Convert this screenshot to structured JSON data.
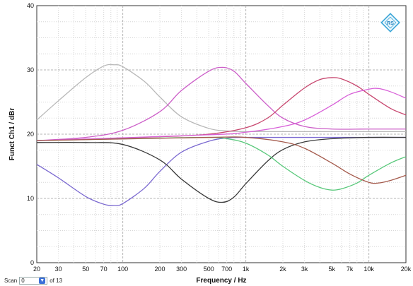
{
  "chart_data": {
    "type": "line",
    "xscale": "log",
    "xlim": [
      20,
      20000
    ],
    "ylim": [
      0,
      40
    ],
    "xlabel": "Frequency / Hz",
    "ylabel": "Funct Ch1 / dBr",
    "xticks": [
      20,
      30,
      50,
      70,
      100,
      200,
      300,
      500,
      700,
      1000,
      2000,
      3000,
      5000,
      7000,
      10000,
      20000
    ],
    "xtick_labels": [
      "20",
      "30",
      "50",
      "70",
      "100",
      "200",
      "300",
      "500",
      "700",
      "1k",
      "2k",
      "3k",
      "5k",
      "7k",
      "10k",
      "20k"
    ],
    "yticks": [
      0,
      10,
      20,
      30,
      40
    ],
    "ytick_labels": [
      "0",
      "10",
      "20",
      "30",
      "40"
    ],
    "grid": true,
    "series": [
      {
        "color": "#b8b8b8",
        "x": [
          20,
          30,
          50,
          70,
          85,
          100,
          150,
          200,
          300,
          500,
          700,
          1000,
          2000,
          5000,
          20000
        ],
        "y": [
          22.2,
          25.2,
          28.8,
          30.6,
          30.8,
          30.5,
          28.2,
          25.8,
          22.7,
          20.9,
          20.5,
          20.4,
          20.4,
          20.4,
          20.4
        ]
      },
      {
        "color": "#7a68d0",
        "x": [
          20,
          30,
          50,
          70,
          85,
          100,
          150,
          200,
          300,
          500,
          700,
          1000,
          2000,
          5000,
          20000
        ],
        "y": [
          15.3,
          13.2,
          10.3,
          9.1,
          8.9,
          9.2,
          11.6,
          14.2,
          17.2,
          18.9,
          19.4,
          19.5,
          19.5,
          19.5,
          19.5
        ]
      },
      {
        "color": "#cc5ec8",
        "x": [
          20,
          50,
          100,
          200,
          300,
          500,
          650,
          800,
          1000,
          1500,
          2000,
          3000,
          5000,
          10000,
          20000
        ],
        "y": [
          19.0,
          19.5,
          20.6,
          23.5,
          26.8,
          29.8,
          30.4,
          29.8,
          27.9,
          24.5,
          22.5,
          21.2,
          20.8,
          20.8,
          20.8
        ]
      },
      {
        "color": "#3a3a3a",
        "x": [
          20,
          50,
          100,
          200,
          300,
          500,
          650,
          800,
          1000,
          1500,
          2000,
          3000,
          5000,
          10000,
          20000
        ],
        "y": [
          18.7,
          18.7,
          18.4,
          16.0,
          13.0,
          10.0,
          9.4,
          10.2,
          12.3,
          15.8,
          17.6,
          18.8,
          19.3,
          19.5,
          19.5
        ]
      },
      {
        "color": "#c84870",
        "x": [
          20,
          200,
          500,
          1000,
          1500,
          2000,
          3000,
          4000,
          5000,
          6000,
          8000,
          10000,
          15000,
          20000
        ],
        "y": [
          19.0,
          19.6,
          20.0,
          21.0,
          22.5,
          24.5,
          27.2,
          28.5,
          28.8,
          28.6,
          27.5,
          26.2,
          24.0,
          23.0
        ]
      },
      {
        "color": "#58c87a",
        "x": [
          20,
          200,
          500,
          700,
          1000,
          1500,
          2000,
          3000,
          4000,
          5000,
          6000,
          8000,
          10000,
          15000,
          20000
        ],
        "y": [
          19.0,
          19.4,
          19.5,
          19.3,
          18.6,
          16.8,
          15.0,
          12.8,
          11.7,
          11.3,
          11.5,
          12.4,
          13.6,
          15.5,
          16.5
        ]
      },
      {
        "color": "#d860d8",
        "x": [
          20,
          500,
          1000,
          2000,
          3000,
          5000,
          7000,
          10000,
          12000,
          15000,
          20000
        ],
        "y": [
          19.0,
          19.9,
          20.3,
          21.2,
          22.2,
          24.5,
          26.2,
          27.0,
          27.1,
          26.6,
          25.6
        ]
      },
      {
        "color": "#a45a4c",
        "x": [
          20,
          500,
          1000,
          2000,
          3000,
          5000,
          7000,
          10000,
          12000,
          15000,
          20000
        ],
        "y": [
          19.0,
          19.5,
          19.5,
          18.8,
          17.8,
          15.5,
          13.8,
          12.5,
          12.4,
          12.8,
          13.6
        ]
      }
    ]
  },
  "scan": {
    "label": "Scan",
    "value": "0",
    "suffix": "of 13"
  }
}
